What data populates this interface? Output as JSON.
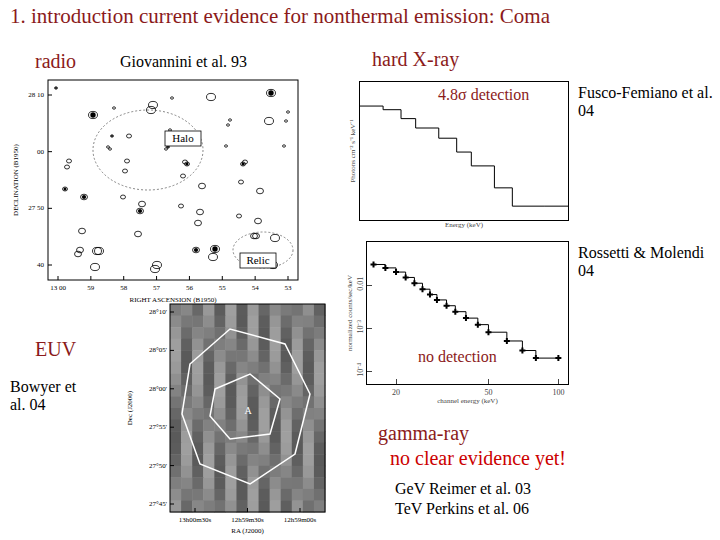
{
  "title": "1. introduction   current evidence for nonthermal emission: Coma",
  "panels": {
    "radio": {
      "label": "radio",
      "reference": "Giovannini et al. 93",
      "image": {
        "x_label": "RIGHT ASCENSION (B1950)",
        "y_label": "DECLINATION (B1950)",
        "x_ticks": [
          "13 00",
          "59",
          "58",
          "57",
          "56",
          "55",
          "54",
          "53"
        ],
        "y_ticks": [
          "28 10",
          "00",
          "27 50",
          "40"
        ],
        "annotations": [
          "Halo",
          "Relic"
        ]
      }
    },
    "hard_xray": {
      "label": "hard X-ray",
      "results": [
        {
          "note": "4.8σ detection",
          "reference": "Fusco-Femiano et al. 04"
        },
        {
          "note": "no detection",
          "reference": "Rossetti & Molendi 04"
        }
      ]
    },
    "euv": {
      "label": "EUV",
      "reference": "Bowyer et al. 04",
      "image": {
        "x_label": "RA (J2000)",
        "y_label": "Dec (J2000)",
        "x_ticks": [
          "13h00m30s",
          "12h59m30s",
          "12h59m00s"
        ],
        "y_ticks": [
          "28°10'",
          "28°05'",
          "28°00'",
          "27°55'",
          "27°50'",
          "27°45'"
        ],
        "annotations": [
          "A"
        ]
      }
    },
    "gamma_ray": {
      "label": "gamma-ray",
      "note": "no clear evidence yet!",
      "references": [
        "GeV Reimer et al. 03",
        "TeV Perkins et al. 06"
      ]
    }
  },
  "chart_data": [
    {
      "type": "line",
      "line_style": "step",
      "log": true,
      "tick_labels": false,
      "color": "#000000",
      "x_label": "Energy (keV)",
      "y_label": "Photons cm⁻² s⁻¹ keV⁻¹",
      "x": [
        15,
        20,
        25,
        30,
        40,
        50,
        60,
        80,
        100,
        150,
        200
      ],
      "values": [
        0.003,
        0.0025,
        0.0016,
        0.001,
        0.0006,
        0.0003,
        0.00015,
        5e-05,
        2e-05,
        2e-05,
        2e-05
      ],
      "xlim": [
        15,
        200
      ],
      "ylim": [
        1e-05,
        0.01
      ]
    },
    {
      "type": "line",
      "line_style": "step",
      "marker": "cross",
      "log": true,
      "color": "#000000",
      "x_label": "channel energy (keV)",
      "y_label": "normalized counts/sec/keV",
      "x": [
        16,
        18,
        20,
        22,
        24,
        26,
        28,
        30,
        33,
        36,
        40,
        45,
        50,
        60,
        70,
        80,
        100
      ],
      "values": [
        0.03,
        0.025,
        0.02,
        0.015,
        0.011,
        0.008,
        0.006,
        0.0045,
        0.0033,
        0.0024,
        0.0017,
        0.0012,
        0.0008,
        0.0005,
        0.0003,
        0.0002,
        0.0002
      ],
      "xlim": [
        15,
        110
      ],
      "ylim": [
        5e-05,
        0.1
      ],
      "xticks": [
        20,
        50,
        100
      ],
      "yticks": [
        {
          "value": 0.01,
          "label": "0.01"
        },
        {
          "value": 0.001,
          "label": "10⁻³"
        },
        {
          "value": 0.0001,
          "label": "10⁻⁴"
        }
      ]
    }
  ]
}
